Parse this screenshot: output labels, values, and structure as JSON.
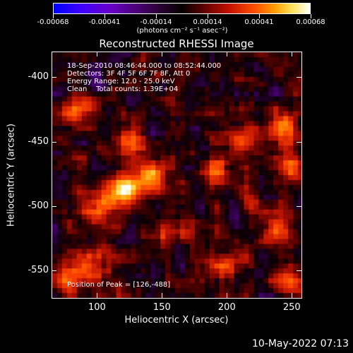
{
  "colorbar": {
    "tick_labels": [
      "-0.00068",
      "-0.00041",
      "-0.00014",
      "0.00014",
      "0.00041",
      "0.00068"
    ],
    "units": "(photons cm⁻² s⁻¹ asec⁻²)"
  },
  "title": "Reconstructed RHESSI Image",
  "annotations": {
    "time_range": "18-Sep-2010 08:46:44.000 to 08:52:44.000",
    "detectors": "Detectors: 3F 4F 5F 6F 7F 8F, Att 0",
    "energy": "Energy Range: 12.0 - 25.0 keV",
    "clean": "Clean    Total counts: 1.39E+04",
    "peak": "Position of Peak = [126,-488]"
  },
  "axes": {
    "x_title": "Heliocentric X (arcsec)",
    "y_title": "Heliocentric Y (arcsec)",
    "x_ticks": [
      "100",
      "150",
      "200",
      "250"
    ],
    "y_ticks": [
      "-400",
      "-450",
      "-500",
      "-550"
    ]
  },
  "footer": {
    "timestamp": "10-May-2022 07:13"
  },
  "colors": {
    "background": "#000000",
    "colorbar_low": "#0000ff",
    "colorbar_high": "#ffffff"
  },
  "chart_data": {
    "type": "heatmap",
    "title": "Reconstructed RHESSI Image",
    "xlabel": "Heliocentric X (arcsec)",
    "ylabel": "Heliocentric Y (arcsec)",
    "xlim": [
      65,
      258
    ],
    "ylim": [
      -572,
      -380
    ],
    "clim": [
      -0.00068,
      0.00068
    ],
    "peak": {
      "x": 126,
      "y": -488
    },
    "hotspots": [
      {
        "x": 120,
        "y": -488,
        "amp": 1.0
      },
      {
        "x": 140,
        "y": -475,
        "amp": 0.75
      },
      {
        "x": 100,
        "y": -500,
        "amp": 0.55
      },
      {
        "x": 85,
        "y": -425,
        "amp": 0.6
      },
      {
        "x": 125,
        "y": -448,
        "amp": 0.6
      },
      {
        "x": 245,
        "y": -440,
        "amp": 0.7
      },
      {
        "x": 250,
        "y": -470,
        "amp": 0.65
      },
      {
        "x": 190,
        "y": -470,
        "amp": 0.55
      },
      {
        "x": 215,
        "y": -445,
        "amp": 0.45
      },
      {
        "x": 80,
        "y": -555,
        "amp": 0.55
      },
      {
        "x": 100,
        "y": -540,
        "amp": 0.45
      },
      {
        "x": 200,
        "y": -545,
        "amp": 0.5
      },
      {
        "x": 240,
        "y": -520,
        "amp": 0.55
      },
      {
        "x": 250,
        "y": -560,
        "amp": 0.5
      },
      {
        "x": 160,
        "y": -520,
        "amp": 0.4
      },
      {
        "x": 225,
        "y": -500,
        "amp": 0.4
      }
    ]
  }
}
